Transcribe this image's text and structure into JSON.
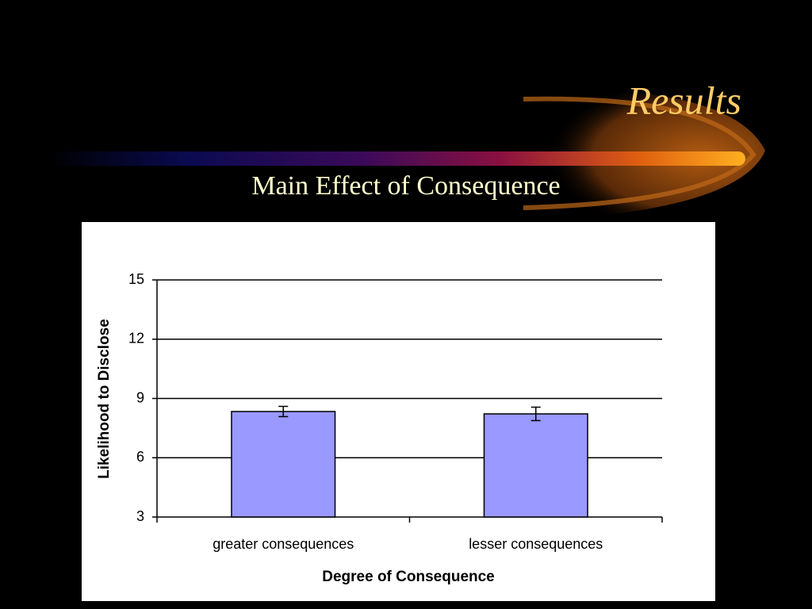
{
  "slide": {
    "title": "Results"
  },
  "chart_data": {
    "type": "bar",
    "title": "Main Effect of Consequence",
    "x_label": "Degree of Consequence",
    "y_label": "Likelihood to Disclose",
    "categories": [
      "greater consequences",
      "lesser consequences"
    ],
    "values": [
      8.34,
      8.22
    ],
    "errors": [
      0.26,
      0.34
    ],
    "color": "#9999ff",
    "ylim": [
      3,
      15
    ],
    "yticks": [
      3,
      6,
      9,
      12,
      15
    ],
    "grid": true
  }
}
